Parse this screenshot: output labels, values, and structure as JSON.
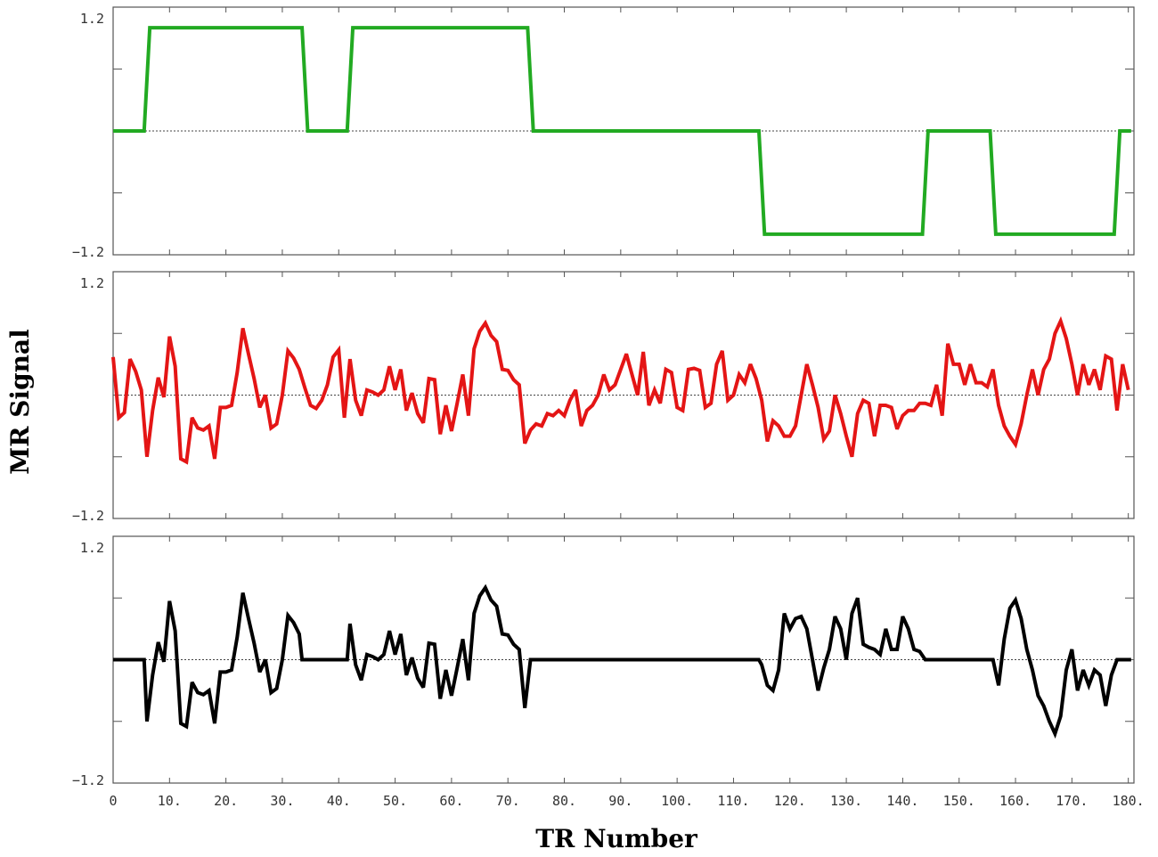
{
  "chart_data": {
    "type": "line",
    "xlabel": "TR Number",
    "ylabel": "MR Signal",
    "xlim": [
      0,
      181
    ],
    "ylim": [
      -1.2,
      1.2
    ],
    "x_ticks": [
      0,
      10,
      20,
      30,
      40,
      50,
      60,
      70,
      80,
      90,
      100,
      110,
      120,
      130,
      140,
      150,
      160,
      170,
      180
    ],
    "x_tick_labels": [
      "0",
      "10.",
      "20.",
      "30.",
      "40.",
      "50.",
      "60.",
      "70.",
      "80.",
      "90.",
      "100.",
      "110.",
      "120.",
      "130.",
      "140.",
      "150.",
      "160.",
      "170.",
      "180."
    ],
    "y_tick_labels": [
      "1.2",
      "−1.2"
    ],
    "zero_reference_line": true,
    "panels": [
      {
        "series_color": "#22aa22",
        "points": [
          [
            0,
            0
          ],
          [
            5.5,
            0
          ],
          [
            6.5,
            1.0
          ],
          [
            33.5,
            1.0
          ],
          [
            34.5,
            0
          ],
          [
            41.5,
            0
          ],
          [
            42.5,
            1.0
          ],
          [
            73.5,
            1.0
          ],
          [
            74.5,
            0
          ],
          [
            114.5,
            0
          ],
          [
            115.5,
            -1.0
          ],
          [
            143.5,
            -1.0
          ],
          [
            144.5,
            0
          ],
          [
            155.5,
            0
          ],
          [
            156.5,
            -1.0
          ],
          [
            177.5,
            -1.0
          ],
          [
            178.5,
            0
          ],
          [
            180.5,
            0
          ]
        ]
      },
      {
        "series_color": "#e41515",
        "points": [
          [
            0,
            0.37
          ],
          [
            1,
            -0.22
          ],
          [
            2,
            -0.17
          ],
          [
            3,
            0.35
          ],
          [
            4,
            0.23
          ],
          [
            5,
            0.05
          ],
          [
            6,
            -0.6
          ],
          [
            7,
            -0.15
          ],
          [
            8,
            0.17
          ],
          [
            9,
            -0.02
          ],
          [
            10,
            0.57
          ],
          [
            11,
            0.28
          ],
          [
            12,
            -0.62
          ],
          [
            13,
            -0.65
          ],
          [
            14,
            -0.22
          ],
          [
            15,
            -0.32
          ],
          [
            16,
            -0.34
          ],
          [
            17,
            -0.3
          ],
          [
            18,
            -0.62
          ],
          [
            19,
            -0.12
          ],
          [
            20,
            -0.12
          ],
          [
            21,
            -0.1
          ],
          [
            22,
            0.22
          ],
          [
            23,
            0.65
          ],
          [
            24,
            0.4
          ],
          [
            25,
            0.16
          ],
          [
            26,
            -0.12
          ],
          [
            27,
            0.0
          ],
          [
            28,
            -0.32
          ],
          [
            29,
            -0.28
          ],
          [
            30,
            0.0
          ],
          [
            31,
            0.43
          ],
          [
            32,
            0.36
          ],
          [
            33,
            0.25
          ],
          [
            34,
            0.07
          ],
          [
            35,
            -0.1
          ],
          [
            36,
            -0.13
          ],
          [
            37,
            -0.05
          ],
          [
            38,
            0.1
          ],
          [
            39,
            0.37
          ],
          [
            40,
            0.44
          ],
          [
            41,
            -0.22
          ],
          [
            42,
            0.35
          ],
          [
            43,
            -0.05
          ],
          [
            44,
            -0.2
          ],
          [
            45,
            0.05
          ],
          [
            46,
            0.03
          ],
          [
            47,
            0.0
          ],
          [
            48,
            0.05
          ],
          [
            49,
            0.28
          ],
          [
            50,
            0.05
          ],
          [
            51,
            0.25
          ],
          [
            52,
            -0.15
          ],
          [
            53,
            0.02
          ],
          [
            54,
            -0.18
          ],
          [
            55,
            -0.27
          ],
          [
            56,
            0.16
          ],
          [
            57,
            0.15
          ],
          [
            58,
            -0.38
          ],
          [
            59,
            -0.1
          ],
          [
            60,
            -0.35
          ],
          [
            61,
            -0.08
          ],
          [
            62,
            0.2
          ],
          [
            63,
            -0.2
          ],
          [
            64,
            0.45
          ],
          [
            65,
            0.62
          ],
          [
            66,
            0.7
          ],
          [
            67,
            0.58
          ],
          [
            68,
            0.52
          ],
          [
            69,
            0.25
          ],
          [
            70,
            0.24
          ],
          [
            71,
            0.15
          ],
          [
            72,
            0.1
          ],
          [
            73,
            -0.47
          ],
          [
            74,
            -0.34
          ],
          [
            75,
            -0.28
          ],
          [
            76,
            -0.3
          ],
          [
            77,
            -0.18
          ],
          [
            78,
            -0.2
          ],
          [
            79,
            -0.15
          ],
          [
            80,
            -0.2
          ],
          [
            81,
            -0.05
          ],
          [
            82,
            0.05
          ],
          [
            83,
            -0.3
          ],
          [
            84,
            -0.15
          ],
          [
            85,
            -0.1
          ],
          [
            86,
            0.0
          ],
          [
            87,
            0.2
          ],
          [
            88,
            0.05
          ],
          [
            89,
            0.1
          ],
          [
            90,
            0.25
          ],
          [
            91,
            0.4
          ],
          [
            92,
            0.2
          ],
          [
            93,
            0.0
          ],
          [
            94,
            0.42
          ],
          [
            95,
            -0.1
          ],
          [
            96,
            0.05
          ],
          [
            97,
            -0.08
          ],
          [
            98,
            0.25
          ],
          [
            99,
            0.22
          ],
          [
            100,
            -0.12
          ],
          [
            101,
            -0.15
          ],
          [
            102,
            0.25
          ],
          [
            103,
            0.26
          ],
          [
            104,
            0.24
          ],
          [
            105,
            -0.12
          ],
          [
            106,
            -0.08
          ],
          [
            107,
            0.3
          ],
          [
            108,
            0.43
          ],
          [
            109,
            -0.05
          ],
          [
            110,
            0.0
          ],
          [
            111,
            0.2
          ],
          [
            112,
            0.12
          ],
          [
            113,
            0.3
          ],
          [
            114,
            0.16
          ],
          [
            115,
            -0.05
          ],
          [
            116,
            -0.45
          ],
          [
            117,
            -0.25
          ],
          [
            118,
            -0.3
          ],
          [
            119,
            -0.4
          ],
          [
            120,
            -0.4
          ],
          [
            121,
            -0.3
          ],
          [
            122,
            0.0
          ],
          [
            123,
            0.3
          ],
          [
            124,
            0.1
          ],
          [
            125,
            -0.12
          ],
          [
            126,
            -0.43
          ],
          [
            127,
            -0.35
          ],
          [
            128,
            0.0
          ],
          [
            129,
            -0.18
          ],
          [
            130,
            -0.4
          ],
          [
            131,
            -0.6
          ],
          [
            132,
            -0.18
          ],
          [
            133,
            -0.05
          ],
          [
            134,
            -0.08
          ],
          [
            135,
            -0.4
          ],
          [
            136,
            -0.1
          ],
          [
            137,
            -0.1
          ],
          [
            138,
            -0.12
          ],
          [
            139,
            -0.33
          ],
          [
            140,
            -0.2
          ],
          [
            141,
            -0.15
          ],
          [
            142,
            -0.15
          ],
          [
            143,
            -0.08
          ],
          [
            144,
            -0.08
          ],
          [
            145,
            -0.1
          ],
          [
            146,
            0.1
          ],
          [
            147,
            -0.2
          ],
          [
            148,
            0.5
          ],
          [
            149,
            0.3
          ],
          [
            150,
            0.3
          ],
          [
            151,
            0.1
          ],
          [
            152,
            0.3
          ],
          [
            153,
            0.12
          ],
          [
            154,
            0.12
          ],
          [
            155,
            0.08
          ],
          [
            156,
            0.25
          ],
          [
            157,
            -0.1
          ],
          [
            158,
            -0.3
          ],
          [
            159,
            -0.4
          ],
          [
            160,
            -0.48
          ],
          [
            161,
            -0.28
          ],
          [
            162,
            0.0
          ],
          [
            163,
            0.25
          ],
          [
            164,
            0.0
          ],
          [
            165,
            0.25
          ],
          [
            166,
            0.35
          ],
          [
            167,
            0.6
          ],
          [
            168,
            0.72
          ],
          [
            169,
            0.55
          ],
          [
            170,
            0.3
          ],
          [
            171,
            0.0
          ],
          [
            172,
            0.3
          ],
          [
            173,
            0.1
          ],
          [
            174,
            0.25
          ],
          [
            175,
            0.05
          ],
          [
            176,
            0.38
          ],
          [
            177,
            0.35
          ],
          [
            178,
            -0.15
          ],
          [
            179,
            0.3
          ],
          [
            180,
            0.05
          ]
        ]
      },
      {
        "series_color": "#000000",
        "points": [
          [
            0,
            0
          ],
          [
            5.5,
            0
          ],
          [
            6,
            -0.6
          ],
          [
            7,
            -0.15
          ],
          [
            8,
            0.17
          ],
          [
            9,
            -0.02
          ],
          [
            10,
            0.57
          ],
          [
            11,
            0.28
          ],
          [
            12,
            -0.62
          ],
          [
            13,
            -0.65
          ],
          [
            14,
            -0.22
          ],
          [
            15,
            -0.32
          ],
          [
            16,
            -0.34
          ],
          [
            17,
            -0.3
          ],
          [
            18,
            -0.62
          ],
          [
            19,
            -0.12
          ],
          [
            20,
            -0.12
          ],
          [
            21,
            -0.1
          ],
          [
            22,
            0.22
          ],
          [
            23,
            0.65
          ],
          [
            24,
            0.4
          ],
          [
            25,
            0.16
          ],
          [
            26,
            -0.12
          ],
          [
            27,
            0.0
          ],
          [
            28,
            -0.32
          ],
          [
            29,
            -0.28
          ],
          [
            30,
            0.0
          ],
          [
            31,
            0.43
          ],
          [
            32,
            0.36
          ],
          [
            33,
            0.25
          ],
          [
            33.5,
            0
          ],
          [
            41.5,
            0
          ],
          [
            42,
            0.35
          ],
          [
            43,
            -0.05
          ],
          [
            44,
            -0.2
          ],
          [
            45,
            0.05
          ],
          [
            46,
            0.03
          ],
          [
            47,
            0.0
          ],
          [
            48,
            0.05
          ],
          [
            49,
            0.28
          ],
          [
            50,
            0.05
          ],
          [
            51,
            0.25
          ],
          [
            52,
            -0.15
          ],
          [
            53,
            0.02
          ],
          [
            54,
            -0.18
          ],
          [
            55,
            -0.27
          ],
          [
            56,
            0.16
          ],
          [
            57,
            0.15
          ],
          [
            58,
            -0.38
          ],
          [
            59,
            -0.1
          ],
          [
            60,
            -0.35
          ],
          [
            61,
            -0.08
          ],
          [
            62,
            0.2
          ],
          [
            63,
            -0.2
          ],
          [
            64,
            0.45
          ],
          [
            65,
            0.62
          ],
          [
            66,
            0.7
          ],
          [
            67,
            0.58
          ],
          [
            68,
            0.52
          ],
          [
            69,
            0.25
          ],
          [
            70,
            0.24
          ],
          [
            71,
            0.15
          ],
          [
            72,
            0.1
          ],
          [
            73,
            -0.47
          ],
          [
            74,
            0
          ],
          [
            114.5,
            0
          ],
          [
            115,
            -0.05
          ],
          [
            116,
            -0.25
          ],
          [
            117,
            -0.3
          ],
          [
            118,
            -0.1
          ],
          [
            119,
            0.45
          ],
          [
            120,
            0.3
          ],
          [
            121,
            0.4
          ],
          [
            122,
            0.42
          ],
          [
            123,
            0.3
          ],
          [
            124,
            0.0
          ],
          [
            125,
            -0.3
          ],
          [
            126,
            -0.08
          ],
          [
            127,
            0.1
          ],
          [
            128,
            0.42
          ],
          [
            129,
            0.3
          ],
          [
            130,
            0.0
          ],
          [
            131,
            0.45
          ],
          [
            132,
            0.6
          ],
          [
            133,
            0.15
          ],
          [
            134,
            0.12
          ],
          [
            135,
            0.1
          ],
          [
            136,
            0.05
          ],
          [
            137,
            0.3
          ],
          [
            138,
            0.1
          ],
          [
            139,
            0.1
          ],
          [
            140,
            0.42
          ],
          [
            141,
            0.3
          ],
          [
            142,
            0.1
          ],
          [
            143,
            0.08
          ],
          [
            144,
            0
          ],
          [
            155.5,
            0
          ],
          [
            156,
            0
          ],
          [
            157,
            -0.25
          ],
          [
            158,
            0.2
          ],
          [
            159,
            0.5
          ],
          [
            160,
            0.58
          ],
          [
            161,
            0.4
          ],
          [
            162,
            0.1
          ],
          [
            163,
            -0.1
          ],
          [
            164,
            -0.35
          ],
          [
            165,
            -0.45
          ],
          [
            166,
            -0.6
          ],
          [
            167,
            -0.72
          ],
          [
            168,
            -0.55
          ],
          [
            169,
            -0.1
          ],
          [
            170,
            0.1
          ],
          [
            171,
            -0.3
          ],
          [
            172,
            -0.1
          ],
          [
            173,
            -0.25
          ],
          [
            174,
            -0.1
          ],
          [
            175,
            -0.15
          ],
          [
            176,
            -0.45
          ],
          [
            177,
            -0.15
          ],
          [
            178,
            0
          ],
          [
            180.5,
            0
          ]
        ]
      }
    ]
  }
}
